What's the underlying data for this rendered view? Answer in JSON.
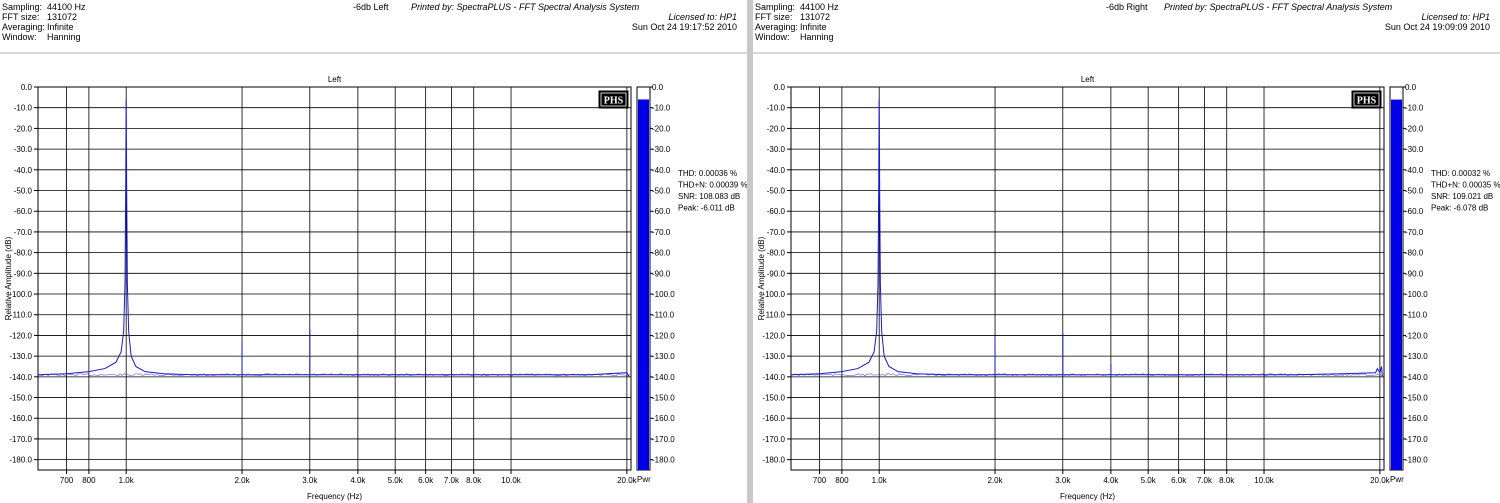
{
  "panels": [
    {
      "header": {
        "labels": [
          "Sampling:",
          "FFT size:",
          "Averaging:",
          "Window:"
        ],
        "values": [
          "44100 Hz",
          "131072",
          "Infinite",
          "Hanning"
        ],
        "title": "-6db Left",
        "printed_by": "Printed by: SpectraPLUS - FFT Spectral Analysis System",
        "licensed_to": "Licensed to: HP1",
        "date": "Sun Oct 24 19:17:52 2010"
      },
      "logo": "PHS",
      "bar_label": "Pwr",
      "stats": [
        "THD: 0.00036 %",
        "THD+N: 0.00039 %",
        "SNR: 108.083 dB",
        "Peak: -6.011 dB"
      ]
    },
    {
      "header": {
        "labels": [
          "Sampling:",
          "FFT size:",
          "Averaging:",
          "Window:"
        ],
        "values": [
          "44100 Hz",
          "131072",
          "Infinite",
          "Hanning"
        ],
        "title": "-6db Right",
        "printed_by": "Printed by: SpectraPLUS - FFT Spectral Analysis System",
        "licensed_to": "Licensed to: HP1",
        "date": "Sun Oct 24 19:09:09 2010"
      },
      "logo": "PHS",
      "bar_label": "Pwr",
      "stats": [
        "THD: 0.00032 %",
        "THD+N: 0.00035 %",
        "SNR: 109.021 dB",
        "Peak: -6.078 dB"
      ]
    }
  ],
  "chart_data": [
    {
      "type": "line",
      "title": "Left",
      "xlabel": "Frequency (Hz)",
      "ylabel": "Relative Amplitude (dB)",
      "xscale": "log",
      "xlim": [
        590,
        20500
      ],
      "ylim": [
        -185,
        0
      ],
      "xticks": [
        700,
        800,
        1000,
        2000,
        3000,
        4000,
        5000,
        6000,
        7000,
        8000,
        10000,
        20000
      ],
      "xticklabels": [
        "700",
        "800",
        "1.0k",
        "2.0k",
        "3.0k",
        "4.0k",
        "5.0k",
        "6.0k",
        "7.0k",
        "8.0k",
        "10.0k",
        "20.0k"
      ],
      "yticks": [
        0,
        -10,
        -20,
        -30,
        -40,
        -50,
        -60,
        -70,
        -80,
        -90,
        -100,
        -110,
        -120,
        -130,
        -140,
        -150,
        -160,
        -170,
        -180
      ],
      "yticklabels": [
        "0.0",
        "-10.0",
        "-20.0",
        "-30.0",
        "-40.0",
        "-50.0",
        "-60.0",
        "-70.0",
        "-80.0",
        "-90.0",
        "-100.0",
        "-110.0",
        "-120.0",
        "-130.0",
        "-140.0",
        "-150.0",
        "-160.0",
        "-170.0",
        "-180.0"
      ],
      "grid": true,
      "color": "#1a1acc",
      "noise_floor": -139,
      "series": [
        {
          "x": [
            590,
            700,
            800,
            880,
            940,
            970,
            985,
            993,
            997,
            1000,
            1003,
            1007,
            1015,
            1030,
            1060,
            1120,
            1250,
            1500,
            2000,
            2000,
            2000,
            3000,
            3000,
            3000,
            5000,
            8000,
            12000,
            16000,
            20000,
            20300
          ],
          "y": [
            -139,
            -138.5,
            -137.5,
            -136,
            -133,
            -128,
            -118,
            -95,
            -50,
            -6,
            -50,
            -95,
            -118,
            -130,
            -135,
            -137.5,
            -138.5,
            -139,
            -139,
            -123,
            -139,
            -139,
            -117,
            -139,
            -139,
            -139,
            -139,
            -139,
            -138,
            -140
          ]
        }
      ],
      "bar": {
        "label": "Pwr",
        "level_db": -6.011,
        "yticklabels": [
          "0.0",
          "-10.0",
          "-20.0",
          "-30.0",
          "-40.0",
          "-50.0",
          "-60.0",
          "-70.0",
          "-80.0",
          "-90.0",
          "-100.0",
          "-110.0",
          "-120.0",
          "-130.0",
          "-140.0",
          "-150.0",
          "-160.0",
          "-170.0",
          "-180.0"
        ]
      }
    },
    {
      "type": "line",
      "title": "Left",
      "xlabel": "Frequency (Hz)",
      "ylabel": "Relative Amplitude (dB)",
      "xscale": "log",
      "xlim": [
        590,
        20500
      ],
      "ylim": [
        -185,
        0
      ],
      "xticks": [
        700,
        800,
        1000,
        2000,
        3000,
        4000,
        5000,
        6000,
        7000,
        8000,
        10000,
        20000
      ],
      "xticklabels": [
        "700",
        "800",
        "1.0k",
        "2.0k",
        "3.0k",
        "4.0k",
        "5.0k",
        "6.0k",
        "7.0k",
        "8.0k",
        "10.0k",
        "20.0k"
      ],
      "yticks": [
        0,
        -10,
        -20,
        -30,
        -40,
        -50,
        -60,
        -70,
        -80,
        -90,
        -100,
        -110,
        -120,
        -130,
        -140,
        -150,
        -160,
        -170,
        -180
      ],
      "yticklabels": [
        "0.0",
        "-10.0",
        "-20.0",
        "-30.0",
        "-40.0",
        "-50.0",
        "-60.0",
        "-70.0",
        "-80.0",
        "-90.0",
        "-100.0",
        "-110.0",
        "-120.0",
        "-130.0",
        "-140.0",
        "-150.0",
        "-160.0",
        "-170.0",
        "-180.0"
      ],
      "grid": true,
      "color": "#1a1acc",
      "noise_floor": -139,
      "series": [
        {
          "x": [
            590,
            700,
            800,
            880,
            940,
            970,
            985,
            993,
            997,
            1000,
            1003,
            1007,
            1015,
            1030,
            1060,
            1120,
            1250,
            1500,
            2000,
            2000,
            2000,
            3000,
            3000,
            3000,
            4000,
            4000,
            4000,
            5000,
            8000,
            12000,
            16000,
            19500,
            19700,
            20000,
            20200,
            20300
          ],
          "y": [
            -139,
            -138.5,
            -137.5,
            -136,
            -133,
            -128,
            -118,
            -95,
            -50,
            -6,
            -50,
            -95,
            -118,
            -130,
            -135,
            -137.5,
            -138.5,
            -139,
            -139,
            -121,
            -139,
            -139,
            -119,
            -139,
            -139,
            -134,
            -139,
            -139,
            -139,
            -139,
            -138.5,
            -138,
            -136,
            -138,
            -135,
            -140
          ]
        }
      ],
      "bar": {
        "label": "Pwr",
        "level_db": -6.078,
        "yticklabels": [
          "0.0",
          "-10.0",
          "-20.0",
          "-30.0",
          "-40.0",
          "-50.0",
          "-60.0",
          "-70.0",
          "-80.0",
          "-90.0",
          "-100.0",
          "-110.0",
          "-120.0",
          "-130.0",
          "-140.0",
          "-150.0",
          "-160.0",
          "-170.0",
          "-180.0"
        ]
      }
    }
  ]
}
